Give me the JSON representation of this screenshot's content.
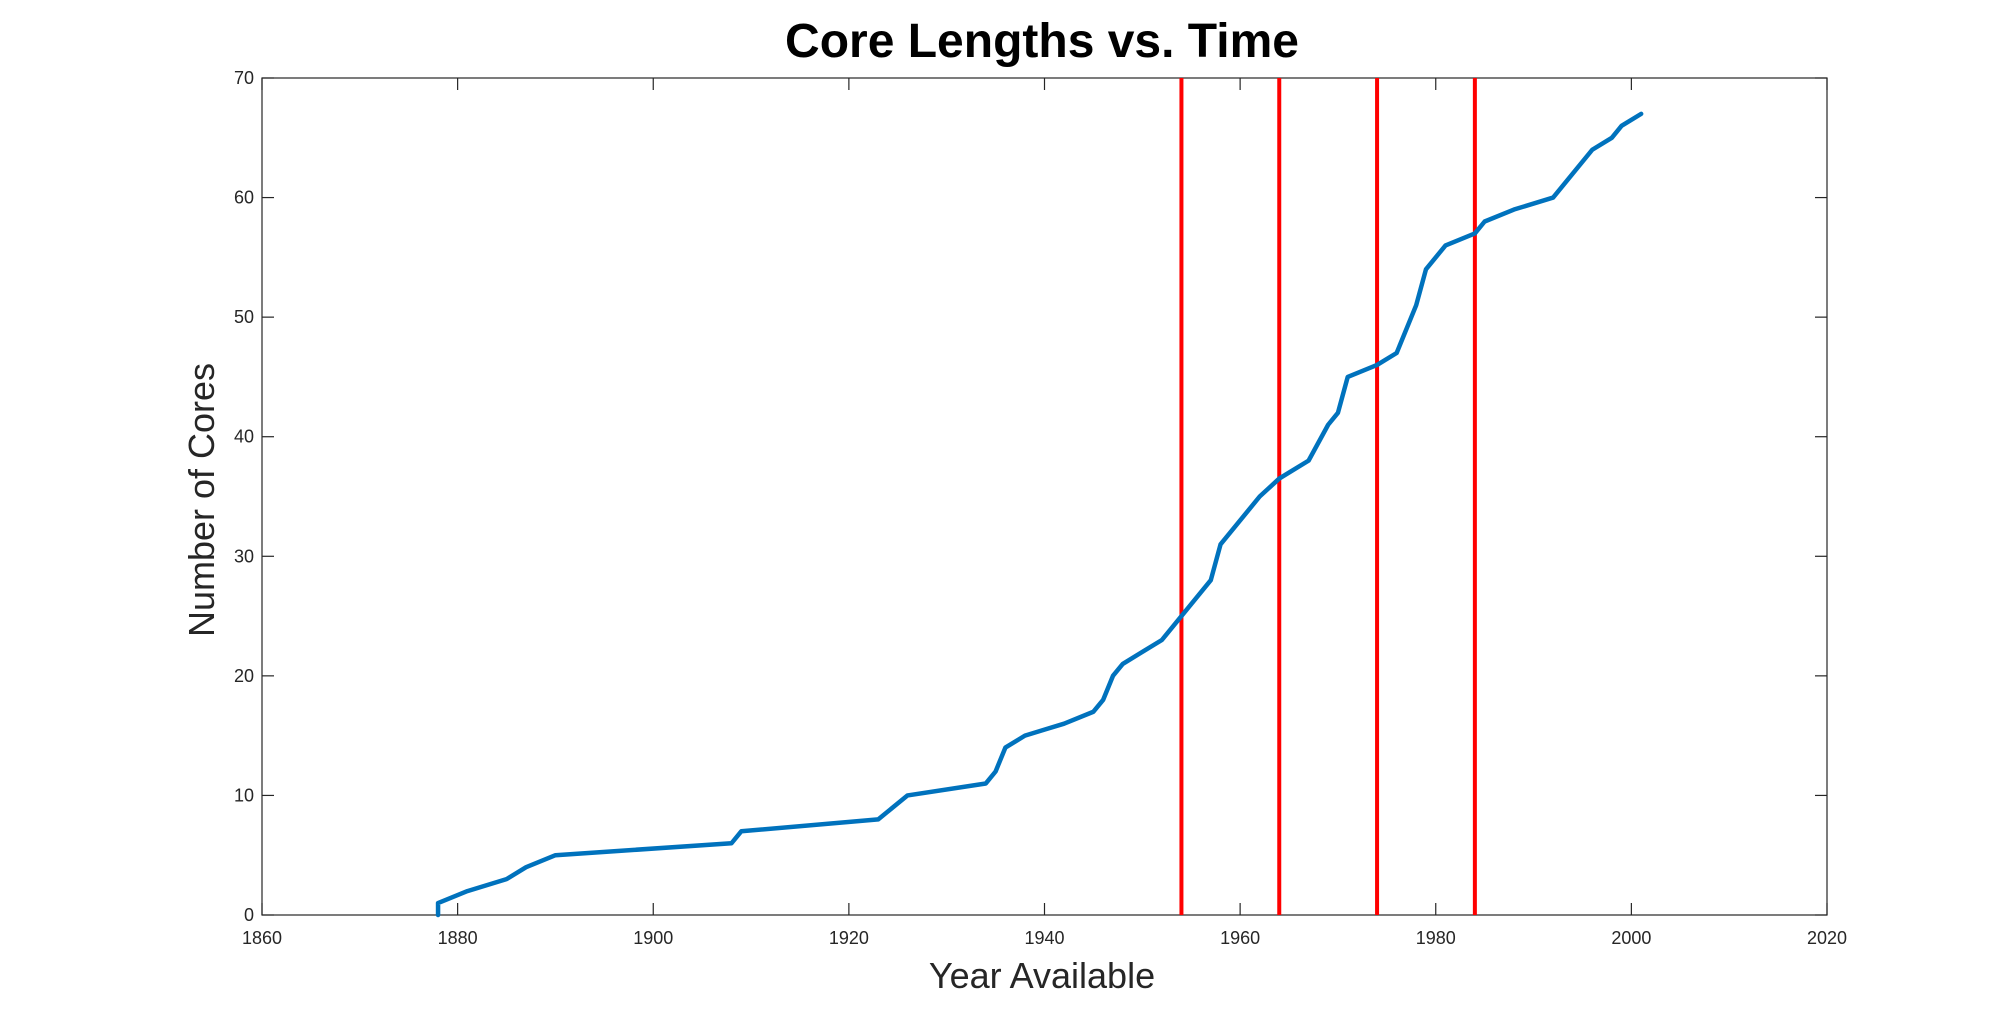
{
  "chart_data": {
    "type": "line",
    "title": "Core Lengths vs. Time",
    "xlabel": "Year Available",
    "ylabel": "Number of Cores",
    "xlim": [
      1860,
      2020
    ],
    "ylim": [
      0,
      70
    ],
    "xticks": [
      "1860",
      "1880",
      "1900",
      "1920",
      "1940",
      "1960",
      "1980",
      "2000",
      "2020"
    ],
    "yticks": [
      "0",
      "10",
      "20",
      "30",
      "40",
      "50",
      "60",
      "70"
    ],
    "grid": false,
    "series": [
      {
        "color": "#0072BD",
        "x": [
          1878,
          1878,
          1881,
          1885,
          1887,
          1890,
          1908,
          1909,
          1923,
          1926,
          1934,
          1935,
          1936,
          1938,
          1940,
          1942,
          1945,
          1946,
          1947,
          1948,
          1952,
          1957,
          1958,
          1962,
          1964,
          1965,
          1967,
          1969,
          1970,
          1971,
          1974,
          1976,
          1978,
          1979,
          1981,
          1984,
          1985,
          1988,
          1992,
          1996,
          1998,
          1999,
          2001
        ],
        "y": [
          0,
          1,
          2,
          3,
          4,
          5,
          6,
          7,
          8,
          10,
          11,
          12,
          14,
          15,
          15.5,
          16,
          17,
          18,
          20,
          21,
          23,
          28,
          31,
          35,
          36.5,
          37,
          38,
          41,
          42,
          45,
          46,
          47,
          51,
          54,
          56,
          57,
          58,
          59,
          60,
          64,
          65,
          66,
          67
        ]
      }
    ],
    "vertical_lines": {
      "color": "#FF0000",
      "x": [
        1954,
        1964,
        1974,
        1984
      ]
    }
  }
}
